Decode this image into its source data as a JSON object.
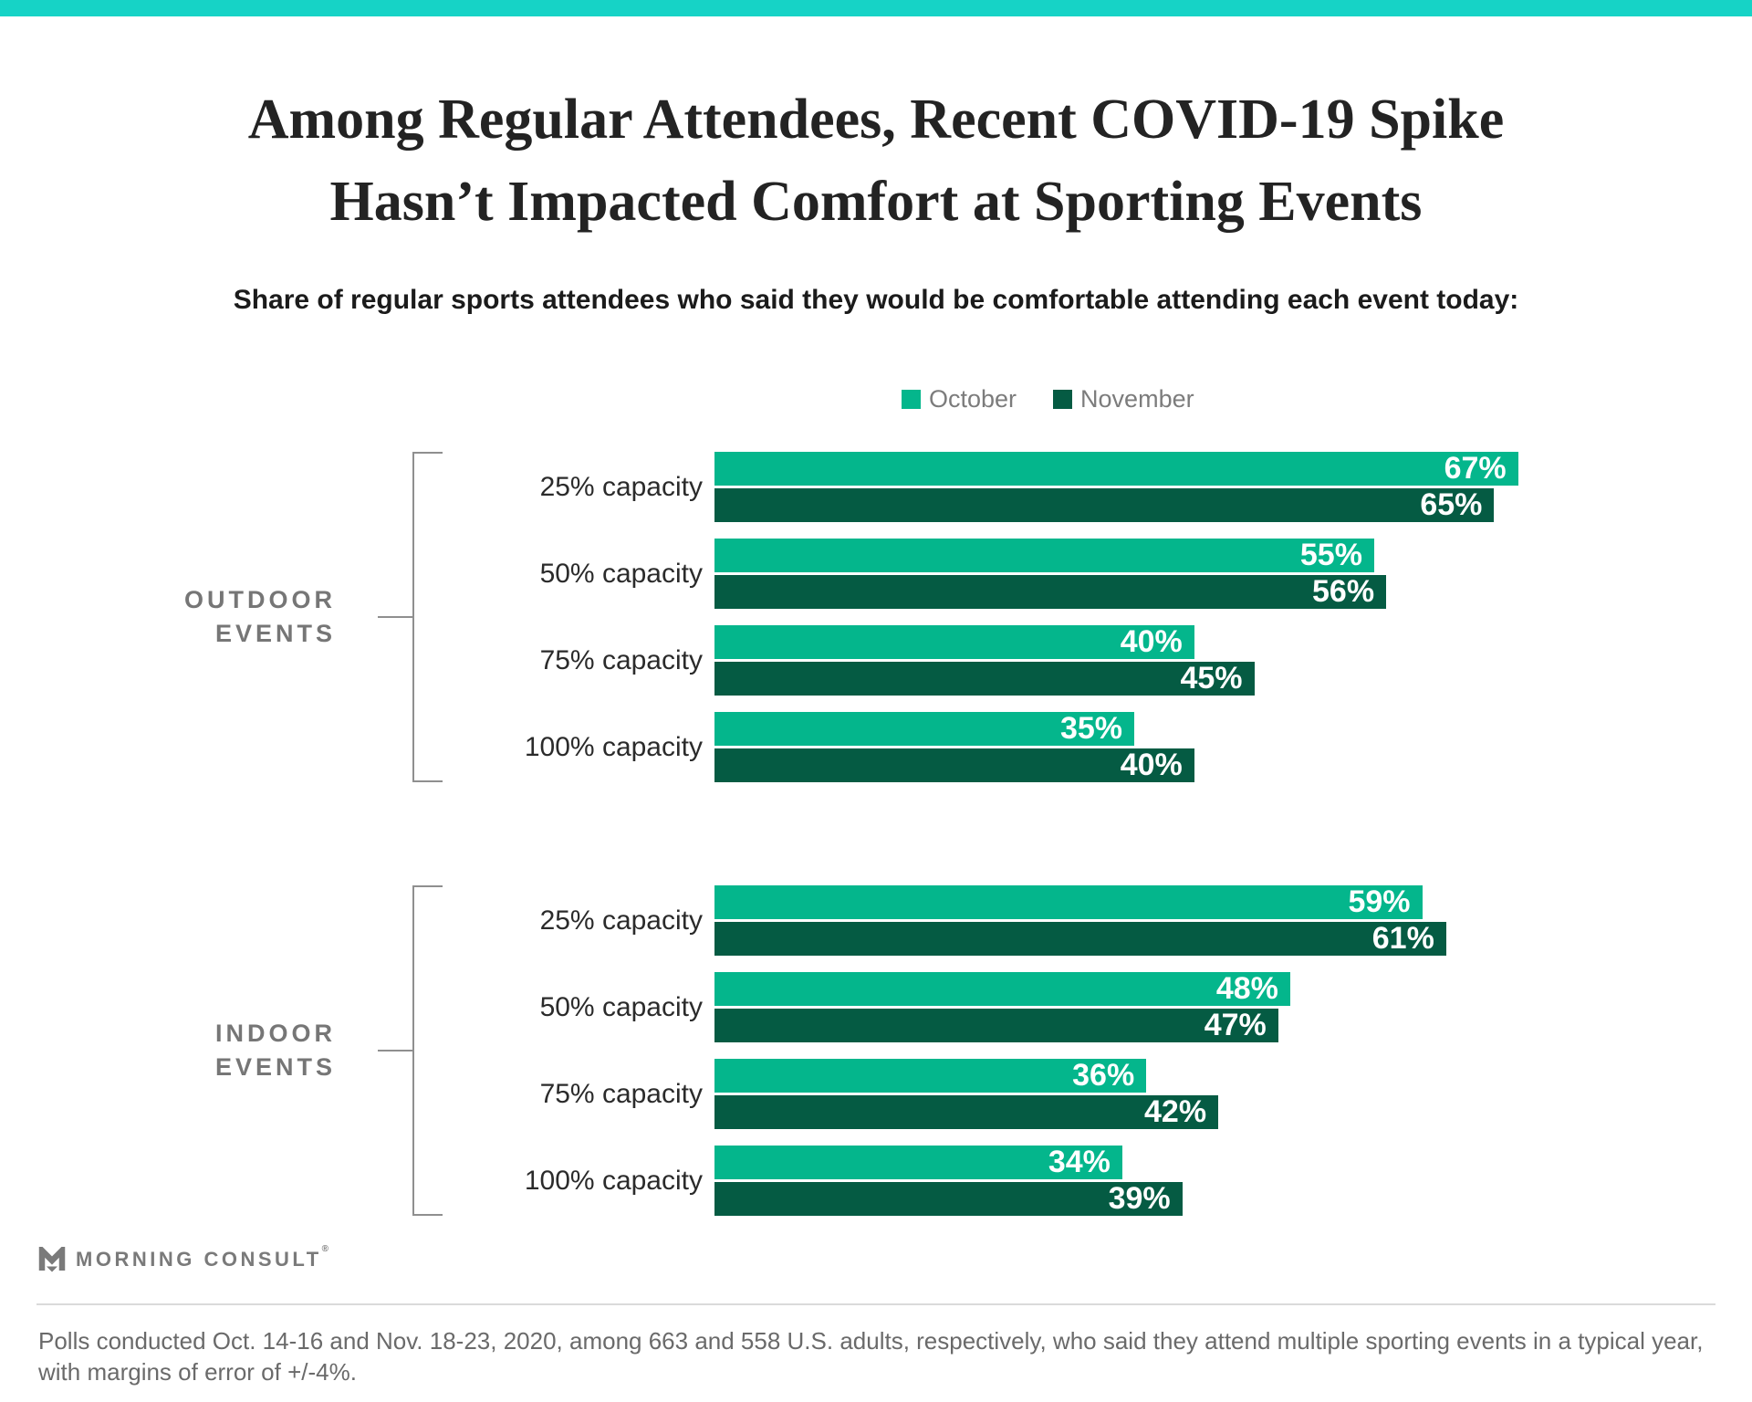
{
  "page": {
    "accent_bar_color": "#16d3c6",
    "title_line1": "Among Regular Attendees, Recent COVID-19 Spike",
    "title_line2": "Hasn’t Impacted Comfort at Sporting Events",
    "subtitle": "Share of regular sports attendees who said they would be comfortable attending each event today:"
  },
  "legend": {
    "items": [
      {
        "label": "October",
        "color": "#04b68c"
      },
      {
        "label": "November",
        "color": "#055b43"
      }
    ]
  },
  "chart_data": {
    "type": "bar",
    "orientation": "horizontal",
    "unit": "%",
    "x_axis_max_pct": 86.5,
    "grid": false,
    "legend_position": "top",
    "series_colors": [
      "#04b68c",
      "#055b43"
    ],
    "series_names": [
      "October",
      "November"
    ],
    "value_label_suffix": "%",
    "groups": [
      {
        "label_lines": [
          "OUTDOOR",
          "EVENTS"
        ],
        "categories": [
          "25% capacity",
          "50% capacity",
          "75% capacity",
          "100% capacity"
        ],
        "series": [
          {
            "name": "October",
            "values": [
              67,
              55,
              40,
              35
            ]
          },
          {
            "name": "November",
            "values": [
              65,
              56,
              45,
              40
            ]
          }
        ]
      },
      {
        "label_lines": [
          "INDOOR",
          "EVENTS"
        ],
        "categories": [
          "25% capacity",
          "50% capacity",
          "75% capacity",
          "100% capacity"
        ],
        "series": [
          {
            "name": "October",
            "values": [
              59,
              48,
              36,
              34
            ]
          },
          {
            "name": "November",
            "values": [
              61,
              47,
              42,
              39
            ]
          }
        ]
      }
    ]
  },
  "footer": {
    "logo_text": "MORNING CONSULT",
    "trademark": "®",
    "source_text": "Polls conducted Oct. 14-16 and Nov. 18-23, 2020, among 663 and 558 U.S. adults, respectively, who said they attend multiple sporting events in a typical year, with margins of error of +/-4%."
  }
}
